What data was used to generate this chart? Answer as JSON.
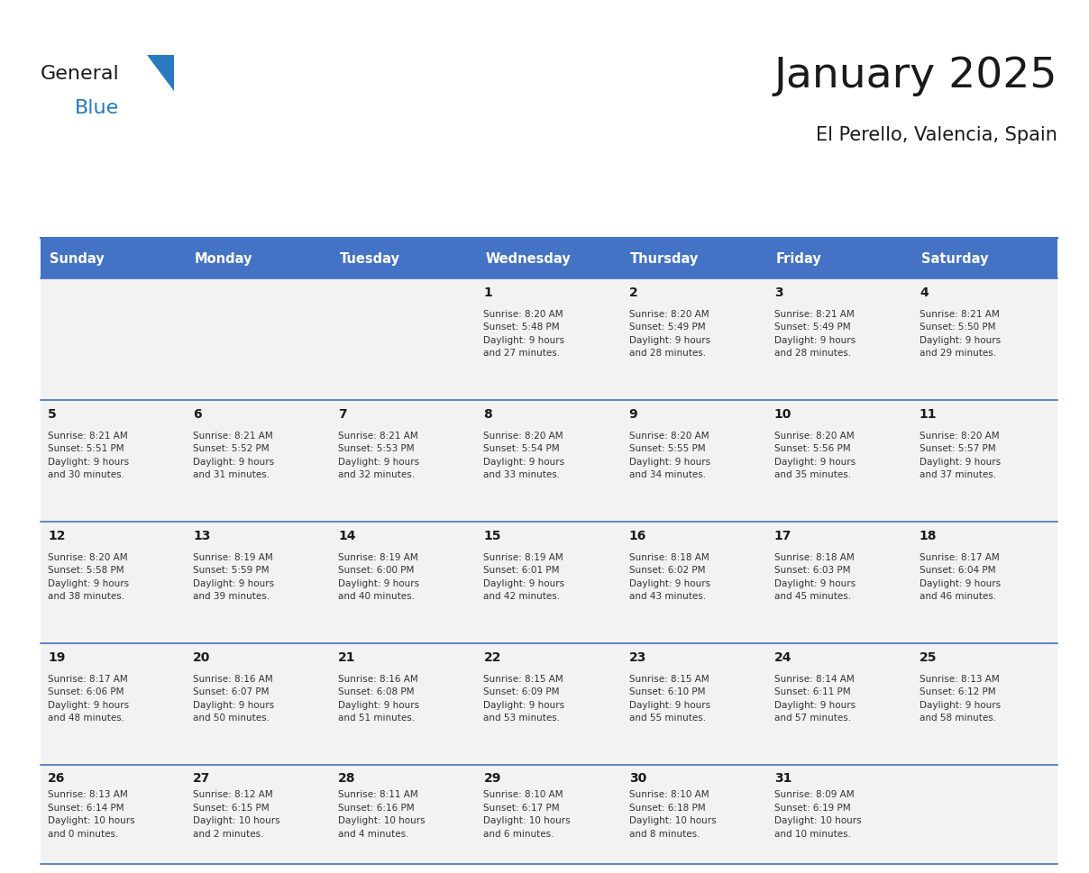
{
  "title": "January 2025",
  "subtitle": "El Perello, Valencia, Spain",
  "days_of_week": [
    "Sunday",
    "Monday",
    "Tuesday",
    "Wednesday",
    "Thursday",
    "Friday",
    "Saturday"
  ],
  "header_bg": "#4472C4",
  "header_text": "#FFFFFF",
  "cell_bg": "#F2F2F2",
  "cell_border_color": "#4472C4",
  "title_color": "#1a1a1a",
  "day_number_color": "#1a1a1a",
  "cell_text_color": "#333333",
  "logo_general_color": "#1a1a1a",
  "logo_blue_color": "#2879C0",
  "logo_triangle_color": "#2879C0",
  "calendar": [
    [
      {
        "day": 0,
        "info": ""
      },
      {
        "day": 0,
        "info": ""
      },
      {
        "day": 0,
        "info": ""
      },
      {
        "day": 1,
        "info": "Sunrise: 8:20 AM\nSunset: 5:48 PM\nDaylight: 9 hours\nand 27 minutes."
      },
      {
        "day": 2,
        "info": "Sunrise: 8:20 AM\nSunset: 5:49 PM\nDaylight: 9 hours\nand 28 minutes."
      },
      {
        "day": 3,
        "info": "Sunrise: 8:21 AM\nSunset: 5:49 PM\nDaylight: 9 hours\nand 28 minutes."
      },
      {
        "day": 4,
        "info": "Sunrise: 8:21 AM\nSunset: 5:50 PM\nDaylight: 9 hours\nand 29 minutes."
      }
    ],
    [
      {
        "day": 5,
        "info": "Sunrise: 8:21 AM\nSunset: 5:51 PM\nDaylight: 9 hours\nand 30 minutes."
      },
      {
        "day": 6,
        "info": "Sunrise: 8:21 AM\nSunset: 5:52 PM\nDaylight: 9 hours\nand 31 minutes."
      },
      {
        "day": 7,
        "info": "Sunrise: 8:21 AM\nSunset: 5:53 PM\nDaylight: 9 hours\nand 32 minutes."
      },
      {
        "day": 8,
        "info": "Sunrise: 8:20 AM\nSunset: 5:54 PM\nDaylight: 9 hours\nand 33 minutes."
      },
      {
        "day": 9,
        "info": "Sunrise: 8:20 AM\nSunset: 5:55 PM\nDaylight: 9 hours\nand 34 minutes."
      },
      {
        "day": 10,
        "info": "Sunrise: 8:20 AM\nSunset: 5:56 PM\nDaylight: 9 hours\nand 35 minutes."
      },
      {
        "day": 11,
        "info": "Sunrise: 8:20 AM\nSunset: 5:57 PM\nDaylight: 9 hours\nand 37 minutes."
      }
    ],
    [
      {
        "day": 12,
        "info": "Sunrise: 8:20 AM\nSunset: 5:58 PM\nDaylight: 9 hours\nand 38 minutes."
      },
      {
        "day": 13,
        "info": "Sunrise: 8:19 AM\nSunset: 5:59 PM\nDaylight: 9 hours\nand 39 minutes."
      },
      {
        "day": 14,
        "info": "Sunrise: 8:19 AM\nSunset: 6:00 PM\nDaylight: 9 hours\nand 40 minutes."
      },
      {
        "day": 15,
        "info": "Sunrise: 8:19 AM\nSunset: 6:01 PM\nDaylight: 9 hours\nand 42 minutes."
      },
      {
        "day": 16,
        "info": "Sunrise: 8:18 AM\nSunset: 6:02 PM\nDaylight: 9 hours\nand 43 minutes."
      },
      {
        "day": 17,
        "info": "Sunrise: 8:18 AM\nSunset: 6:03 PM\nDaylight: 9 hours\nand 45 minutes."
      },
      {
        "day": 18,
        "info": "Sunrise: 8:17 AM\nSunset: 6:04 PM\nDaylight: 9 hours\nand 46 minutes."
      }
    ],
    [
      {
        "day": 19,
        "info": "Sunrise: 8:17 AM\nSunset: 6:06 PM\nDaylight: 9 hours\nand 48 minutes."
      },
      {
        "day": 20,
        "info": "Sunrise: 8:16 AM\nSunset: 6:07 PM\nDaylight: 9 hours\nand 50 minutes."
      },
      {
        "day": 21,
        "info": "Sunrise: 8:16 AM\nSunset: 6:08 PM\nDaylight: 9 hours\nand 51 minutes."
      },
      {
        "day": 22,
        "info": "Sunrise: 8:15 AM\nSunset: 6:09 PM\nDaylight: 9 hours\nand 53 minutes."
      },
      {
        "day": 23,
        "info": "Sunrise: 8:15 AM\nSunset: 6:10 PM\nDaylight: 9 hours\nand 55 minutes."
      },
      {
        "day": 24,
        "info": "Sunrise: 8:14 AM\nSunset: 6:11 PM\nDaylight: 9 hours\nand 57 minutes."
      },
      {
        "day": 25,
        "info": "Sunrise: 8:13 AM\nSunset: 6:12 PM\nDaylight: 9 hours\nand 58 minutes."
      }
    ],
    [
      {
        "day": 26,
        "info": "Sunrise: 8:13 AM\nSunset: 6:14 PM\nDaylight: 10 hours\nand 0 minutes."
      },
      {
        "day": 27,
        "info": "Sunrise: 8:12 AM\nSunset: 6:15 PM\nDaylight: 10 hours\nand 2 minutes."
      },
      {
        "day": 28,
        "info": "Sunrise: 8:11 AM\nSunset: 6:16 PM\nDaylight: 10 hours\nand 4 minutes."
      },
      {
        "day": 29,
        "info": "Sunrise: 8:10 AM\nSunset: 6:17 PM\nDaylight: 10 hours\nand 6 minutes."
      },
      {
        "day": 30,
        "info": "Sunrise: 8:10 AM\nSunset: 6:18 PM\nDaylight: 10 hours\nand 8 minutes."
      },
      {
        "day": 31,
        "info": "Sunrise: 8:09 AM\nSunset: 6:19 PM\nDaylight: 10 hours\nand 10 minutes."
      },
      {
        "day": 0,
        "info": ""
      }
    ]
  ]
}
